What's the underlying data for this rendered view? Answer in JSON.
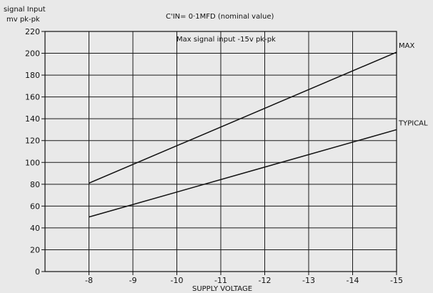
{
  "chart_data": {
    "type": "line",
    "ylabel_line1": "signal Input",
    "ylabel_line2": "mv pk-pk",
    "title": "C'IN= 0·1MFD (nominal value)",
    "annotation": "Max signal input -15v pk-pk",
    "xlabel": "SUPPLY VOLTAGE",
    "x_ticks": [
      -8,
      -9,
      -10,
      -11,
      -12,
      -13,
      -14,
      -15
    ],
    "y_ticks": [
      0,
      20,
      40,
      60,
      80,
      100,
      120,
      140,
      160,
      180,
      200,
      220
    ],
    "xlim": [
      -7,
      -15
    ],
    "ylim": [
      0,
      220
    ],
    "grid": true,
    "series": [
      {
        "name": "MAX",
        "x": [
          -8,
          -15
        ],
        "y": [
          81,
          201
        ]
      },
      {
        "name": "TYPICAL",
        "x": [
          -8,
          -15
        ],
        "y": [
          50,
          130
        ]
      }
    ]
  }
}
